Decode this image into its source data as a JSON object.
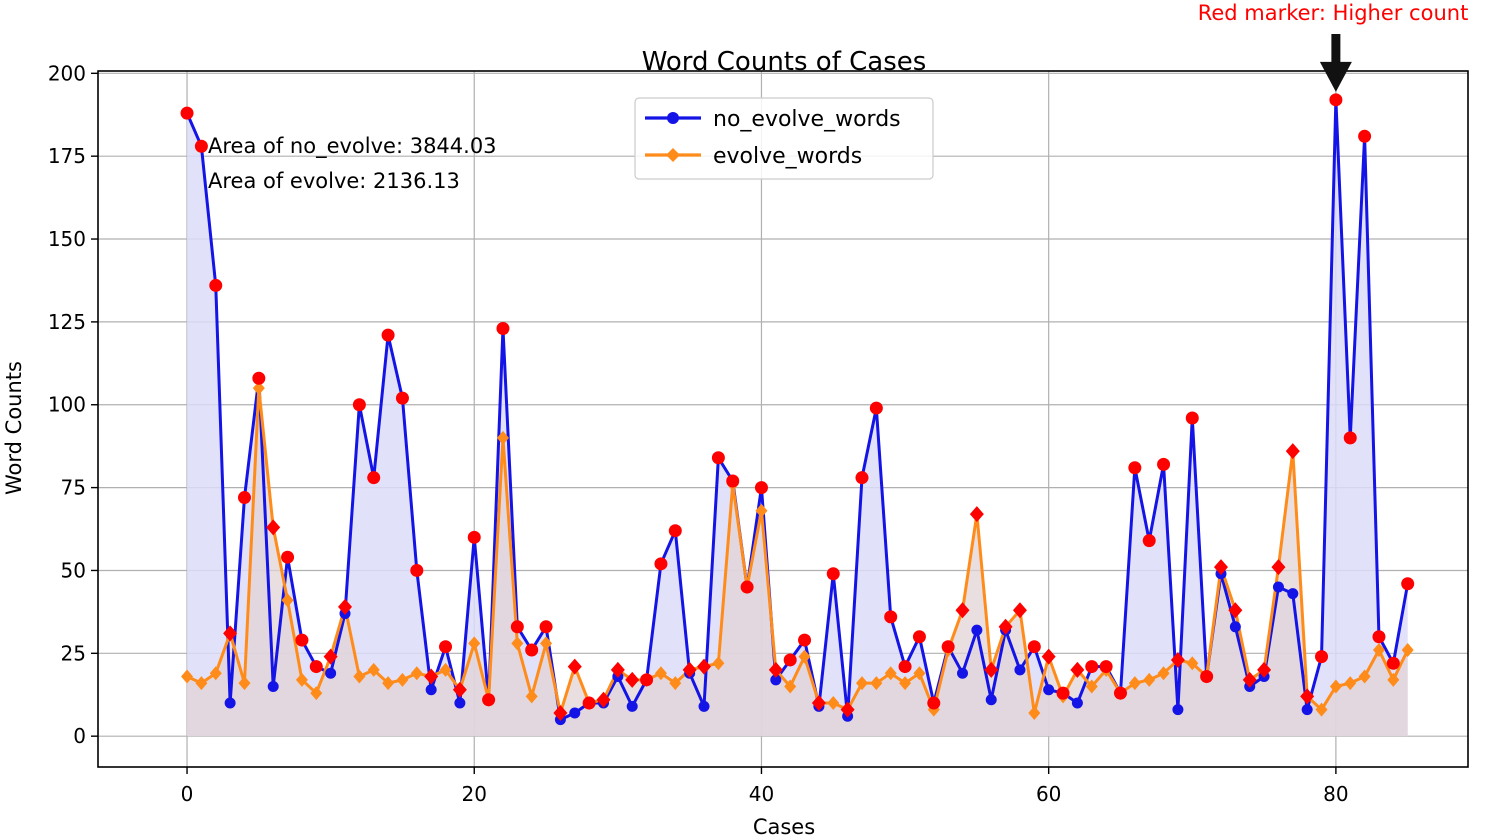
{
  "chart_data": {
    "type": "line",
    "title": "Word Counts of Cases",
    "xlabel": "Cases",
    "ylabel": "Word Counts",
    "xlim": [
      -6.2,
      89.2
    ],
    "ylim": [
      -9.3,
      200.7
    ],
    "xticks": [
      0,
      20,
      40,
      60,
      80
    ],
    "yticks": [
      0,
      25,
      50,
      75,
      100,
      125,
      150,
      175,
      200
    ],
    "grid": true,
    "legend_placement": "top-center",
    "colors": {
      "no_evolve": "#1414e6",
      "evolve": "#ff8c1a",
      "fill_no_evolve": "#dcdcf8",
      "fill_evolve": "#e2d3d6",
      "highlight_marker": "#ff0000",
      "grid": "#b0b0b0"
    },
    "x": [
      0,
      1,
      2,
      3,
      4,
      5,
      6,
      7,
      8,
      9,
      10,
      11,
      12,
      13,
      14,
      15,
      16,
      17,
      18,
      19,
      20,
      21,
      22,
      23,
      24,
      25,
      26,
      27,
      28,
      29,
      30,
      31,
      32,
      33,
      34,
      35,
      36,
      37,
      38,
      39,
      40,
      41,
      42,
      43,
      44,
      45,
      46,
      47,
      48,
      49,
      50,
      51,
      52,
      53,
      54,
      55,
      56,
      57,
      58,
      59,
      60,
      61,
      62,
      63,
      64,
      65,
      66,
      67,
      68,
      69,
      70,
      71,
      72,
      73,
      74,
      75,
      76,
      77,
      78,
      79,
      80,
      81,
      82,
      83,
      84,
      85
    ],
    "series": [
      {
        "name": "no_evolve_words",
        "marker": "circle",
        "values": [
          188,
          178,
          136,
          10,
          72,
          108,
          15,
          54,
          29,
          21,
          19,
          37,
          100,
          78,
          121,
          102,
          50,
          14,
          27,
          10,
          60,
          11,
          123,
          33,
          26,
          33,
          5,
          7,
          10,
          10,
          18,
          9,
          17,
          52,
          62,
          19,
          9,
          84,
          77,
          45,
          75,
          17,
          23,
          29,
          9,
          49,
          6,
          78,
          99,
          36,
          21,
          30,
          10,
          27,
          19,
          32,
          11,
          32,
          20,
          27,
          14,
          13,
          10,
          21,
          21,
          13,
          81,
          59,
          82,
          8,
          96,
          18,
          49,
          33,
          15,
          18,
          45,
          43,
          8,
          24,
          192,
          90,
          181,
          30,
          22,
          46
        ]
      },
      {
        "name": "evolve_words",
        "marker": "diamond",
        "values": [
          18,
          16,
          19,
          31,
          16,
          105,
          63,
          41,
          17,
          13,
          24,
          39,
          18,
          20,
          16,
          17,
          19,
          18,
          20,
          14,
          28,
          11,
          90,
          28,
          12,
          28,
          7,
          21,
          10,
          11,
          20,
          17,
          17,
          19,
          16,
          20,
          21,
          22,
          76,
          45,
          68,
          20,
          15,
          24,
          10,
          10,
          8,
          16,
          16,
          19,
          16,
          19,
          8,
          26,
          38,
          67,
          20,
          33,
          38,
          7,
          24,
          12,
          20,
          15,
          20,
          13,
          16,
          17,
          19,
          23,
          22,
          18,
          51,
          38,
          17,
          20,
          51,
          86,
          12,
          8,
          15,
          16,
          18,
          26,
          17,
          26
        ]
      }
    ],
    "annotations": {
      "area_no_evolve": "Area of no_evolve: 3844.03",
      "area_evolve": "Area of evolve: 2136.13",
      "marker_note": "Red marker: Higher count",
      "arrow_target_x": 80,
      "arrow_target_y": 192
    }
  }
}
